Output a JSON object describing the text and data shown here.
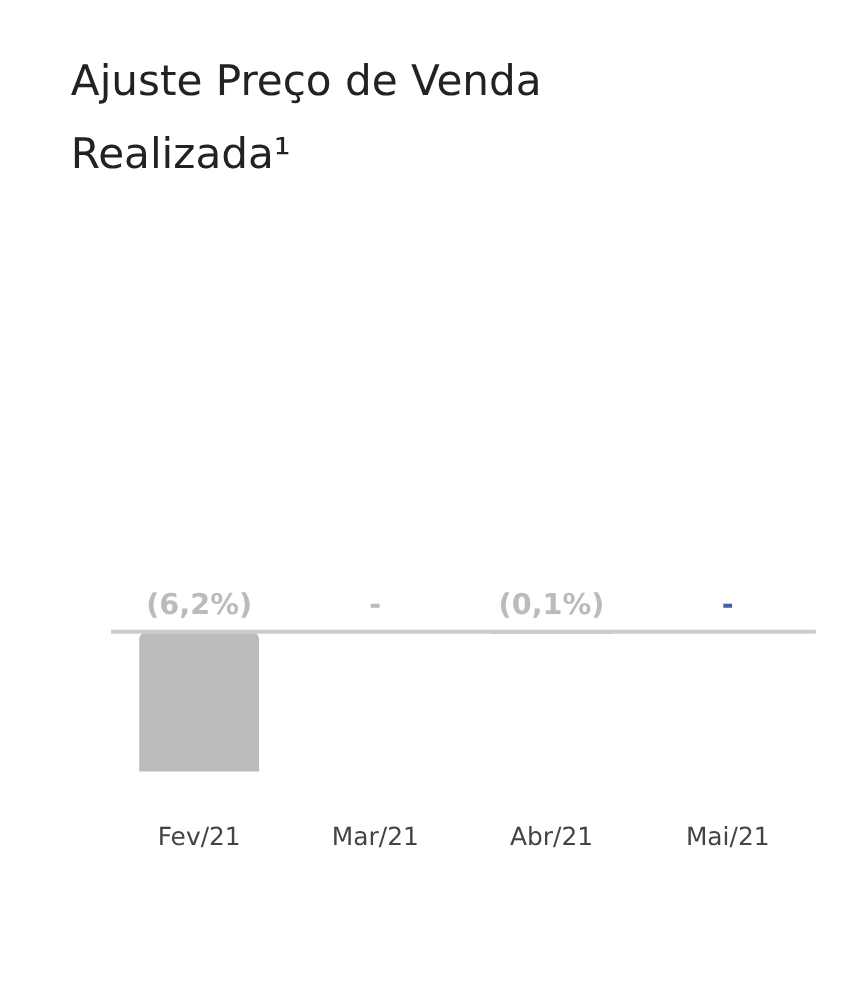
{
  "chart_data": {
    "type": "bar",
    "title": "Ajuste Preço de Venda Realizada¹",
    "categories": [
      "Fev/21",
      "Mar/21",
      "Abr/21",
      "Mai/21"
    ],
    "values": [
      -6.2,
      0,
      -0.1,
      0
    ],
    "colors": [
      "#bbbbbb",
      "#bbbbbb",
      "#bbbbbb",
      "#4564a8"
    ],
    "value_labels": [
      "(6,2%)",
      "-",
      "(0,1%)",
      "-"
    ],
    "grid": false
  }
}
